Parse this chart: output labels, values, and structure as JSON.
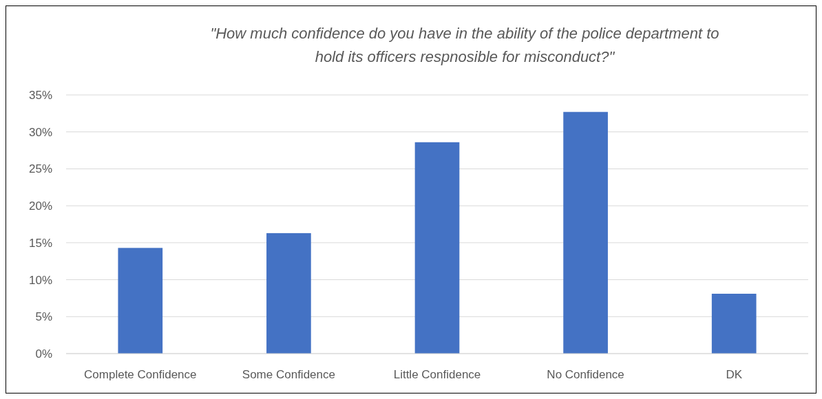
{
  "chart_data": {
    "type": "bar",
    "title": "\"How much confidence do you have in the ability of the police department to hold its officers respnosible for misconduct?\"",
    "categories": [
      "Complete Confidence",
      "Some Confidence",
      "Little Confidence",
      "No Confidence",
      "DK"
    ],
    "values": [
      14.3,
      16.3,
      28.6,
      32.7,
      8.1
    ],
    "color": "#4472c4",
    "ylim": [
      0,
      35
    ],
    "yticks": [
      {
        "value": 0,
        "label": "0%"
      },
      {
        "value": 5,
        "label": "5%"
      },
      {
        "value": 10,
        "label": "10%"
      },
      {
        "value": 15,
        "label": "15%"
      },
      {
        "value": 20,
        "label": "20%"
      },
      {
        "value": 25,
        "label": "25%"
      },
      {
        "value": 30,
        "label": "30%"
      },
      {
        "value": 35,
        "label": "35%"
      }
    ],
    "grid": "y"
  }
}
